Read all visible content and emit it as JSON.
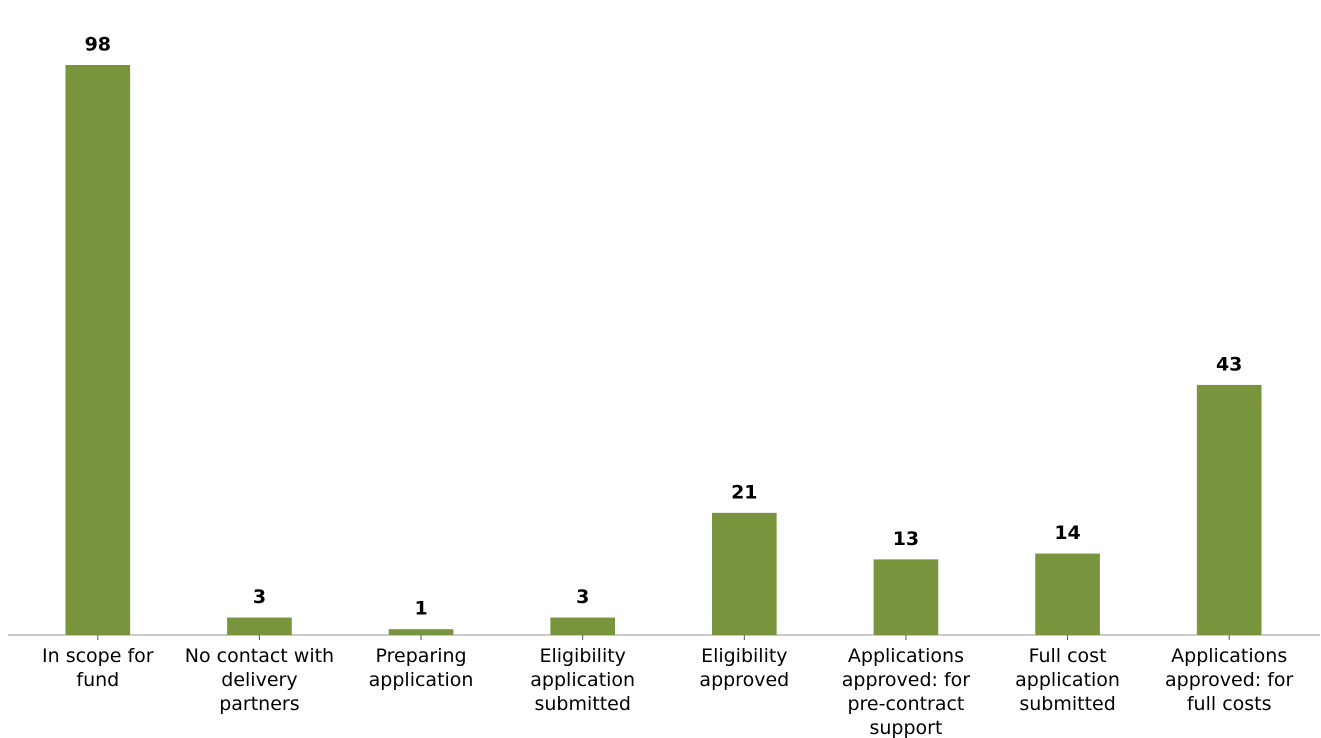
{
  "chart_data": {
    "type": "bar",
    "categories": [
      "In scope for fund",
      "No contact with delivery partners",
      "Preparing application",
      "Eligibility application submitted",
      "Eligibility approved",
      "Applications approved: for pre-contract support",
      "Full cost application submitted",
      "Applications approved: for full costs"
    ],
    "values": [
      98,
      3,
      1,
      3,
      21,
      13,
      14,
      43
    ],
    "color": "#78943d",
    "ylim": [
      0,
      98
    ]
  }
}
